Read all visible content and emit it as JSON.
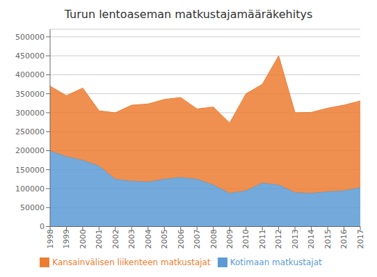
{
  "chart_data": {
    "type": "area",
    "title": "Turun lentoaseman matkustajamääräkehitys",
    "x": [
      1998,
      1999,
      2000,
      2001,
      2002,
      2003,
      2004,
      2005,
      2006,
      2007,
      2008,
      2009,
      2010,
      2011,
      2012,
      2013,
      2014,
      2015,
      2016,
      2017
    ],
    "xlim": [
      1998,
      2017
    ],
    "xticks": [
      1998,
      1999,
      2000,
      2001,
      2002,
      2003,
      2004,
      2005,
      2006,
      2007,
      2008,
      2009,
      2010,
      2011,
      2012,
      2013,
      2014,
      2015,
      2016,
      2017
    ],
    "series": [
      {
        "name": "Kotimaan matkustajat",
        "color": "#5b9bd5",
        "values": [
          200000,
          185000,
          175000,
          160000,
          125000,
          120000,
          118000,
          125000,
          130000,
          125000,
          110000,
          88000,
          95000,
          115000,
          110000,
          90000,
          88000,
          92000,
          95000,
          103000
        ]
      },
      {
        "name": "Kansainvälisen liikenteen matkustajat",
        "color": "#ed7d31",
        "values": [
          170000,
          160000,
          190000,
          145000,
          175000,
          200000,
          205000,
          210000,
          210000,
          185000,
          205000,
          185000,
          255000,
          260000,
          340000,
          210000,
          213000,
          220000,
          225000,
          228000
        ]
      }
    ],
    "ylim": [
      0,
      520000
    ],
    "yticks": [
      0,
      50000,
      100000,
      150000,
      200000,
      250000,
      300000,
      350000,
      400000,
      450000,
      500000
    ],
    "stacked": true,
    "grid": true,
    "legend": "bottom"
  }
}
